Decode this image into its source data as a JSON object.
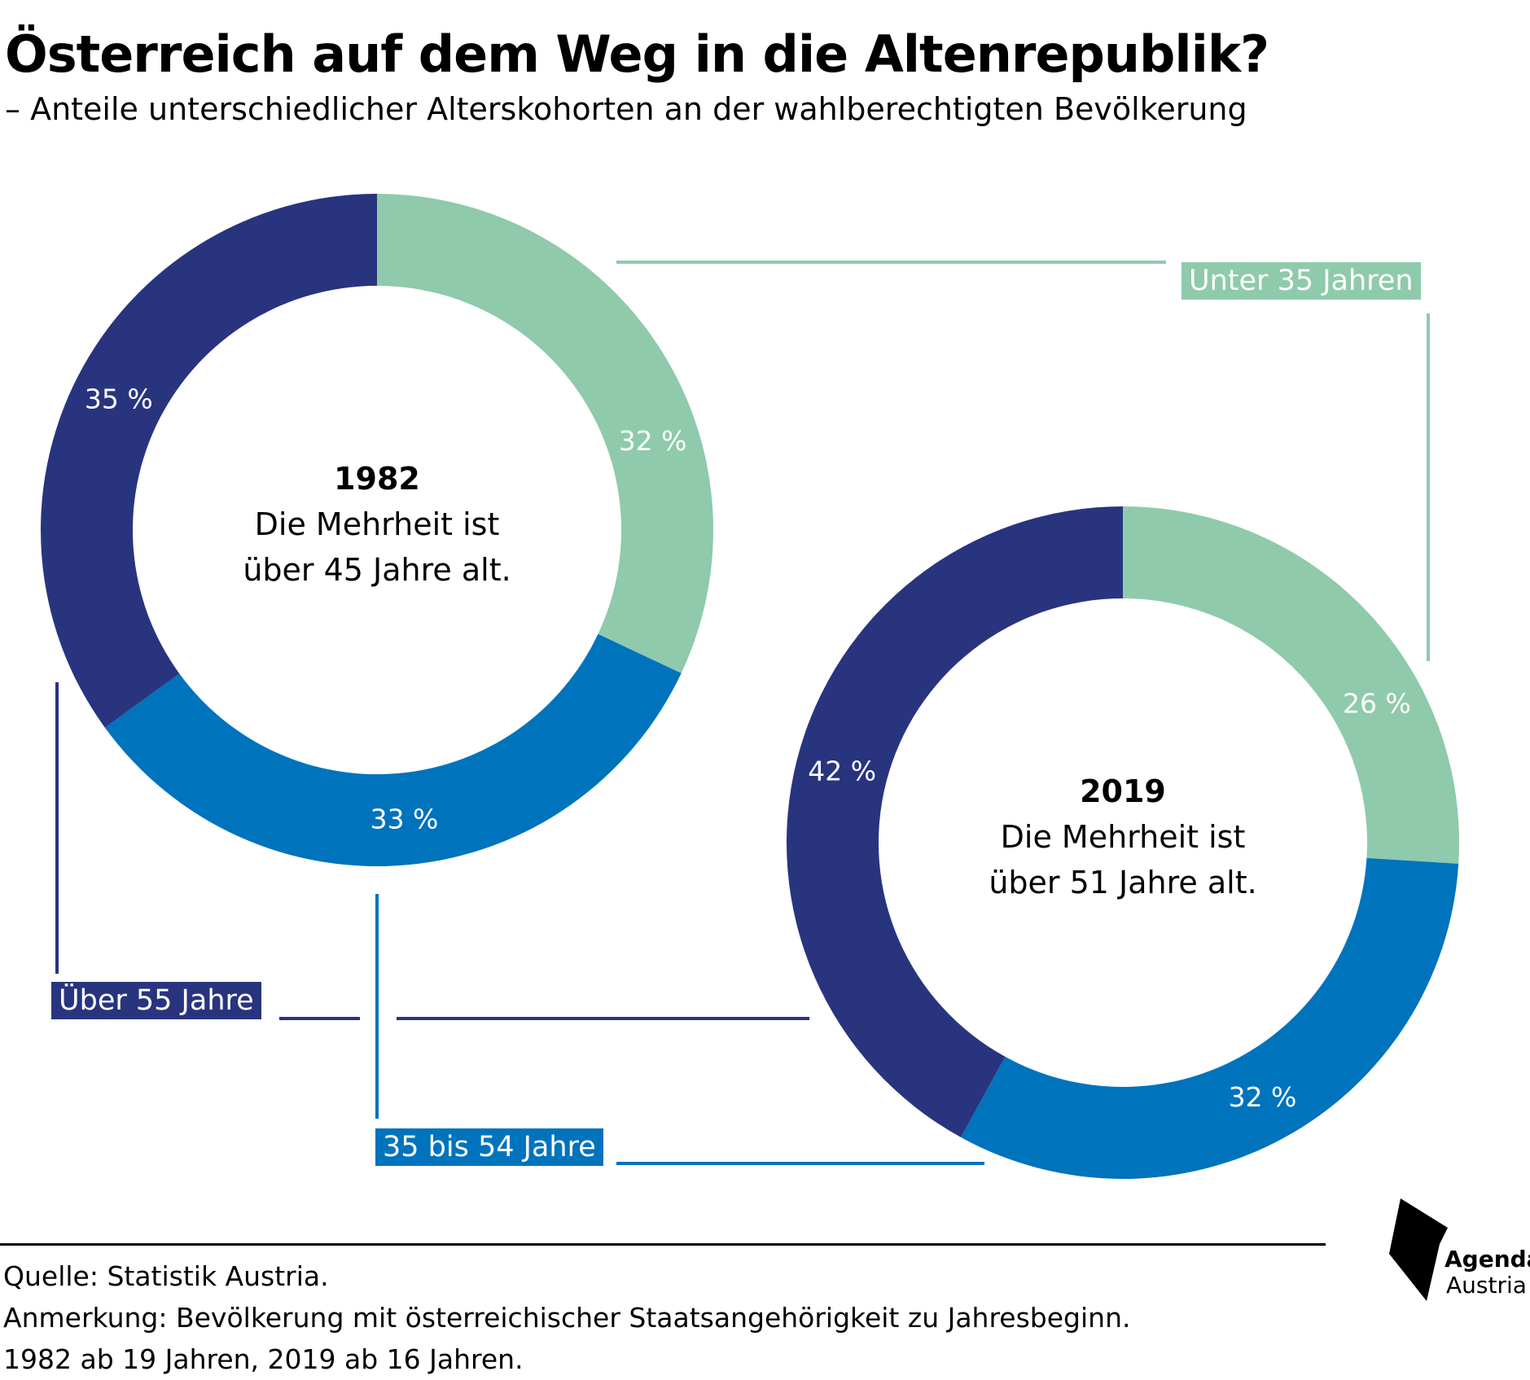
{
  "title": "Österreich auf dem Weg in die Altenrepublik?",
  "subtitle": "– Anteile unterschiedlicher Alterskohorten an der wahlberechtigten Bevölkerung",
  "colors": {
    "unter_35": "#8ecaab",
    "35_bis_54": "#0073bd",
    "ueber_55": "#29347f"
  },
  "chart_data": {
    "type": "pie",
    "variant": "donut",
    "categories": [
      "Unter 35 Jahren",
      "35 bis 54 Jahre",
      "Über 55 Jahre"
    ],
    "series": [
      {
        "year_label": "1982",
        "center_line1": "Die Mehrheit ist",
        "center_line2": "über 45 Jahre alt.",
        "values": [
          32,
          33,
          35
        ],
        "value_labels": [
          "32 %",
          "33 %",
          "35 %"
        ]
      },
      {
        "year_label": "2019",
        "center_line1": "Die Mehrheit ist",
        "center_line2": "über 51 Jahre alt.",
        "values": [
          26,
          32,
          42
        ],
        "value_labels": [
          "26 %",
          "32 %",
          "42 %"
        ]
      }
    ],
    "legend": {
      "unter_35": "Unter 35 Jahren",
      "35_bis_54": "35 bis 54 Jahre",
      "ueber_55": "Über 55 Jahre"
    }
  },
  "footer": {
    "source": "Quelle: Statistik Austria.",
    "note": "Anmerkung: Bevölkerung mit österreichischer Staatsangehörigkeit zu Jahresbeginn.",
    "note2": "1982 ab 19 Jahren, 2019 ab 16 Jahren."
  },
  "logo": {
    "line1": "Agenda",
    "line2": "Austria",
    "icon": "agenda-austria-logo-icon"
  }
}
